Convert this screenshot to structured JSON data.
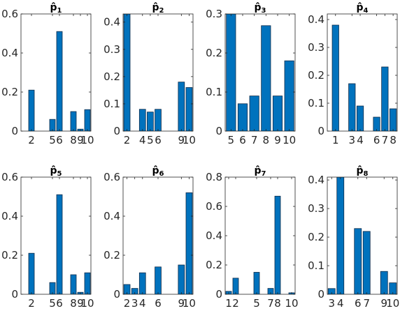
{
  "bar_color": "#0072BD",
  "bar_edge_color": "#0d2b4a",
  "chart_data": [
    {
      "type": "bar",
      "title": "p̂1",
      "title_base": "p̂",
      "title_sub": "1",
      "x": [
        2,
        5,
        6,
        8,
        9,
        10
      ],
      "values": [
        0.21,
        0.06,
        0.51,
        0.1,
        0.01,
        0.11
      ],
      "xticks": [
        2,
        5,
        6,
        8,
        9,
        10
      ],
      "xlim": [
        0.5,
        10.5
      ],
      "ylim": [
        0,
        0.6
      ],
      "yticks": [
        0,
        0.2,
        0.4,
        0.6
      ],
      "yticklabels": [
        "0",
        "0.2",
        "0.4",
        "0.6"
      ]
    },
    {
      "type": "bar",
      "title": "p̂2",
      "title_base": "p̂",
      "title_sub": "2",
      "x": [
        2,
        4,
        5,
        6,
        9,
        10
      ],
      "values": [
        0.43,
        0.08,
        0.07,
        0.08,
        0.18,
        0.16
      ],
      "xticks": [
        2,
        4,
        5,
        6,
        9,
        10
      ],
      "xlim": [
        1.5,
        10.5
      ],
      "ylim": [
        0,
        0.43
      ],
      "yticks": [
        0,
        0.1,
        0.2,
        0.3,
        0.4
      ],
      "yticklabels": [
        "0",
        "0.1",
        "0.2",
        "0.3",
        "0.4"
      ]
    },
    {
      "type": "bar",
      "title": "p̂3",
      "title_base": "p̂",
      "title_sub": "3",
      "x": [
        5,
        6,
        7,
        8,
        9,
        10
      ],
      "values": [
        0.3,
        0.07,
        0.09,
        0.27,
        0.09,
        0.18
      ],
      "xticks": [
        5,
        6,
        7,
        8,
        9,
        10
      ],
      "xlim": [
        4.5,
        10.5
      ],
      "ylim": [
        0,
        0.3
      ],
      "yticks": [
        0,
        0.1,
        0.2,
        0.3
      ],
      "yticklabels": [
        "0",
        "0.1",
        "0.2",
        "0.3"
      ]
    },
    {
      "type": "bar",
      "title": "p̂4",
      "title_base": "p̂",
      "title_sub": "4",
      "x": [
        1,
        3,
        4,
        6,
        7,
        8
      ],
      "values": [
        0.38,
        0.17,
        0.09,
        0.05,
        0.23,
        0.08
      ],
      "xticks": [
        1,
        3,
        4,
        6,
        7,
        8
      ],
      "xlim": [
        0,
        8.5
      ],
      "ylim": [
        0,
        0.42
      ],
      "yticks": [
        0,
        0.1,
        0.2,
        0.3,
        0.4
      ],
      "yticklabels": [
        "0",
        "0.1",
        "0.2",
        "0.3",
        "0.4"
      ]
    },
    {
      "type": "bar",
      "title": "p̂5",
      "title_base": "p̂",
      "title_sub": "5",
      "x": [
        2,
        5,
        6,
        8,
        9,
        10
      ],
      "values": [
        0.21,
        0.06,
        0.51,
        0.1,
        0.01,
        0.11
      ],
      "xticks": [
        2,
        5,
        6,
        8,
        9,
        10
      ],
      "xlim": [
        0.5,
        10.5
      ],
      "ylim": [
        0,
        0.6
      ],
      "yticks": [
        0,
        0.2,
        0.4,
        0.6
      ],
      "yticklabels": [
        "0",
        "0.2",
        "0.4",
        "0.6"
      ]
    },
    {
      "type": "bar",
      "title": "p̂6",
      "title_base": "p̂",
      "title_sub": "6",
      "x": [
        2,
        3,
        4,
        6,
        9,
        10
      ],
      "values": [
        0.05,
        0.03,
        0.11,
        0.14,
        0.15,
        0.52
      ],
      "xticks": [
        2,
        3,
        4,
        6,
        9,
        10
      ],
      "xlim": [
        1.5,
        10.5
      ],
      "ylim": [
        0,
        0.6
      ],
      "yticks": [
        0,
        0.2,
        0.4,
        0.6
      ],
      "yticklabels": [
        "0",
        "0.2",
        "0.4",
        "0.6"
      ]
    },
    {
      "type": "bar",
      "title": "p̂7",
      "title_base": "p̂",
      "title_sub": "7",
      "x": [
        1,
        2,
        5,
        7,
        8,
        10
      ],
      "values": [
        0.02,
        0.11,
        0.15,
        0.04,
        0.67,
        0.01
      ],
      "xticks": [
        1,
        2,
        5,
        7,
        8,
        10
      ],
      "xlim": [
        0.5,
        10.5
      ],
      "ylim": [
        0,
        0.8
      ],
      "yticks": [
        0,
        0.2,
        0.4,
        0.6,
        0.8
      ],
      "yticklabels": [
        "0",
        "0.2",
        "0.4",
        "0.6",
        "0.8"
      ]
    },
    {
      "type": "bar",
      "title": "p̂8",
      "title_base": "p̂",
      "title_sub": "8",
      "x": [
        3,
        4,
        6,
        7,
        9,
        10
      ],
      "values": [
        0.02,
        0.41,
        0.23,
        0.22,
        0.08,
        0.04
      ],
      "xticks": [
        3,
        4,
        6,
        7,
        9,
        10
      ],
      "xlim": [
        2.5,
        10.5
      ],
      "ylim": [
        0,
        0.41
      ],
      "yticks": [
        0,
        0.1,
        0.2,
        0.3,
        0.4
      ],
      "yticklabels": [
        "0",
        "0.1",
        "0.2",
        "0.3",
        "0.4"
      ]
    }
  ]
}
